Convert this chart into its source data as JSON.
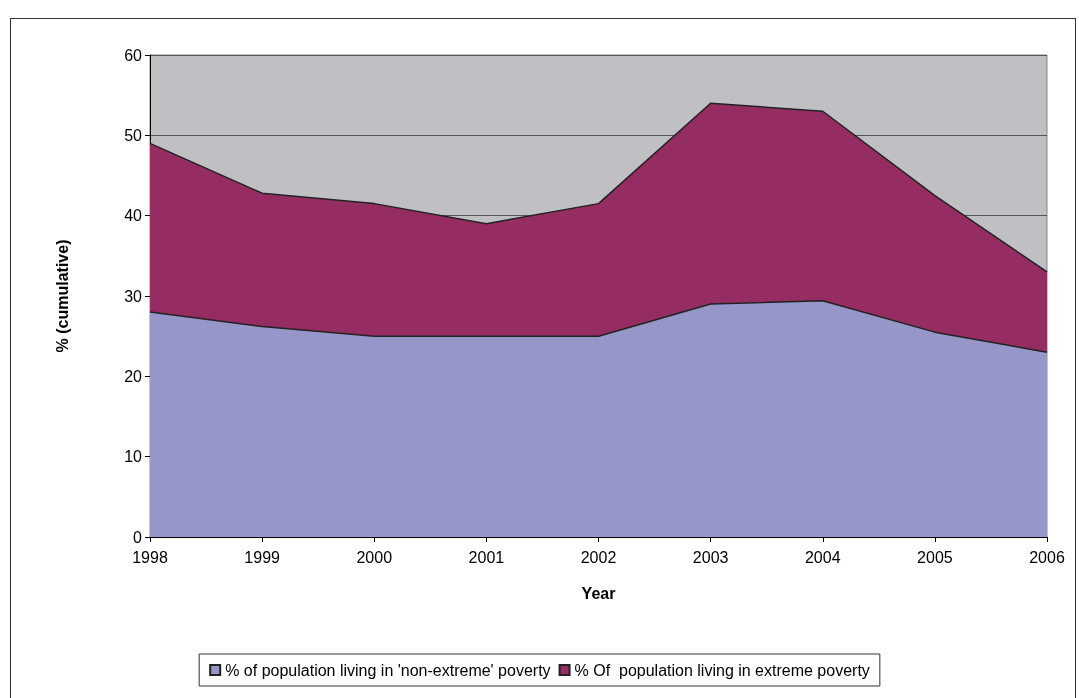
{
  "chart_data": {
    "type": "area",
    "stacked": true,
    "xlabel": "Year",
    "ylabel": "% (cumulative)",
    "categories": [
      "1998",
      "1999",
      "2000",
      "2001",
      "2002",
      "2003",
      "2004",
      "2005",
      "2006"
    ],
    "series": [
      {
        "name": "% of population living in 'non-extreme' poverty",
        "color": "#9696c8",
        "values": [
          28,
          26.2,
          25,
          25,
          25,
          29,
          29.4,
          25.5,
          23
        ]
      },
      {
        "name": "% Of  population living in extreme poverty",
        "color": "#962d62",
        "values": [
          21,
          16.6,
          16.5,
          14,
          16.5,
          25,
          23.6,
          17,
          10
        ]
      }
    ],
    "ylim": [
      0,
      60
    ],
    "yticks": [
      0,
      10,
      20,
      30,
      40,
      50,
      60
    ],
    "grid": "y",
    "legend": "bottom",
    "marker": "none",
    "line_style": "solid"
  }
}
